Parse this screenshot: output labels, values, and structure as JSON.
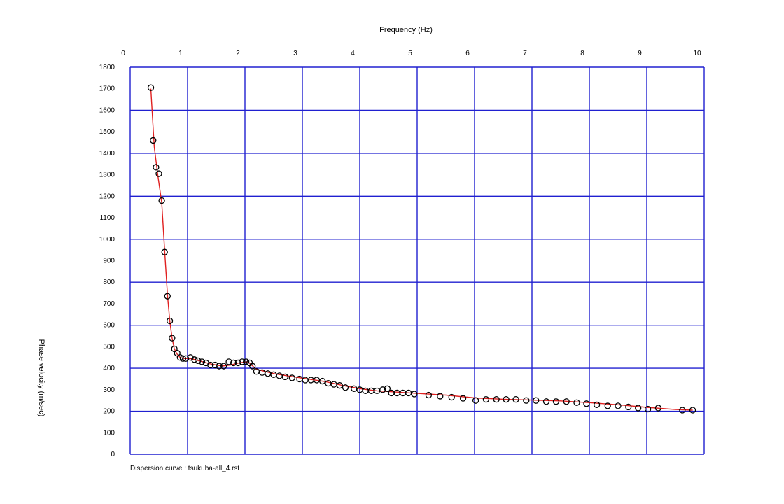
{
  "chart_data": {
    "type": "scatter",
    "xlabel": "Frequency (Hz)",
    "ylabel": "Phase velocity (m/sec)",
    "caption": "Dispersion curve : tsukuba-all_4.rst",
    "x_axis_position": "top",
    "xlim": [
      0,
      10
    ],
    "ylim": [
      0,
      1800
    ],
    "xticks": [
      0,
      1,
      2,
      3,
      4,
      5,
      6,
      7,
      8,
      9,
      10
    ],
    "yticks": [
      0,
      100,
      200,
      300,
      400,
      500,
      600,
      700,
      800,
      900,
      1000,
      1100,
      1200,
      1300,
      1400,
      1500,
      1600,
      1700,
      1800
    ],
    "grid": true,
    "colors": {
      "grid": "#2020d0",
      "curve": "#e02020",
      "marker": "#000000",
      "background": "#ffffff"
    },
    "series": [
      {
        "kind": "markers",
        "x": [
          0.36,
          0.4,
          0.45,
          0.5,
          0.55,
          0.6,
          0.65,
          0.69,
          0.73,
          0.77,
          0.82,
          0.87,
          0.92,
          0.97,
          1.05,
          1.12,
          1.18,
          1.25,
          1.32,
          1.4,
          1.48,
          1.55,
          1.63,
          1.72,
          1.8,
          1.88,
          1.95,
          2.02,
          2.08,
          2.13,
          2.2,
          2.3,
          2.4,
          2.5,
          2.6,
          2.7,
          2.82,
          2.95,
          3.05,
          3.15,
          3.25,
          3.35,
          3.45,
          3.55,
          3.65,
          3.75,
          3.9,
          4.0,
          4.1,
          4.2,
          4.3,
          4.4,
          4.48,
          4.55,
          4.65,
          4.75,
          4.85,
          4.95,
          5.2,
          5.4,
          5.6,
          5.8,
          6.02,
          6.2,
          6.38,
          6.55,
          6.72,
          6.9,
          7.07,
          7.25,
          7.42,
          7.6,
          7.78,
          7.95,
          8.13,
          8.32,
          8.5,
          8.68,
          8.85,
          9.02,
          9.2,
          9.62,
          9.8
        ],
        "y": [
          1705,
          1460,
          1335,
          1305,
          1180,
          940,
          735,
          620,
          540,
          490,
          470,
          450,
          445,
          445,
          450,
          440,
          435,
          430,
          425,
          415,
          415,
          410,
          410,
          430,
          425,
          425,
          430,
          430,
          425,
          410,
          385,
          380,
          375,
          370,
          365,
          360,
          355,
          350,
          345,
          345,
          345,
          340,
          330,
          325,
          320,
          310,
          305,
          300,
          295,
          295,
          295,
          300,
          305,
          285,
          285,
          285,
          285,
          280,
          275,
          270,
          265,
          260,
          250,
          255,
          255,
          255,
          255,
          250,
          250,
          245,
          245,
          245,
          240,
          235,
          230,
          225,
          225,
          220,
          215,
          210,
          215,
          205,
          205
        ]
      },
      {
        "kind": "line",
        "x": [
          0.36,
          0.42,
          0.48,
          0.55,
          0.6,
          0.65,
          0.69,
          0.73,
          0.77,
          0.82,
          0.87,
          0.95,
          1.05,
          1.2,
          1.4,
          1.6,
          1.75,
          1.9,
          2.05,
          2.2,
          2.5,
          2.8,
          3.1,
          3.4,
          3.7,
          4.0,
          4.3,
          4.6,
          5.0,
          5.5,
          6.0,
          6.5,
          7.0,
          7.5,
          8.0,
          8.5,
          9.0,
          9.5,
          9.8
        ],
        "y": [
          1700,
          1430,
          1300,
          1170,
          950,
          740,
          620,
          540,
          490,
          465,
          450,
          445,
          445,
          435,
          420,
          410,
          415,
          425,
          430,
          395,
          375,
          362,
          350,
          338,
          320,
          305,
          295,
          290,
          283,
          275,
          262,
          256,
          252,
          248,
          240,
          230,
          218,
          208,
          205
        ]
      }
    ]
  }
}
